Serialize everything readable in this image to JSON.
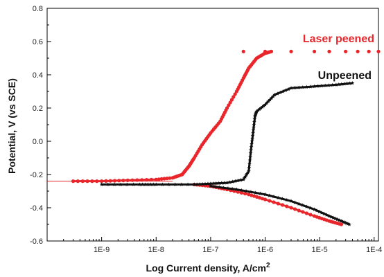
{
  "chart_data": {
    "type": "scatter",
    "xlabel": "Log Current density, A/cm",
    "xlabel_sup": "2",
    "ylabel": "Potential, V (vs SCE)",
    "xscale": "log",
    "xlim": [
      1e-10,
      0.00012
    ],
    "ylim": [
      -0.6,
      0.8
    ],
    "grid": false,
    "x_tick_values": [
      1e-09,
      1e-08,
      1e-07,
      1e-06,
      1e-05,
      0.0001
    ],
    "x_tick_labels": [
      "1E-9",
      "1E-8",
      "1E-7",
      "1E-6",
      "1E-5",
      "1E-4"
    ],
    "y_tick_values": [
      -0.6,
      -0.4,
      -0.2,
      0.0,
      0.2,
      0.4,
      0.6,
      0.8
    ],
    "y_tick_labels": [
      "-0.6",
      "-0.4",
      "-0.2",
      "0.0",
      "0.2",
      "0.4",
      "0.6",
      "0.8"
    ],
    "series": [
      {
        "name": "Laser peened",
        "color": "#e8262b",
        "marker": "circle",
        "anodic": [
          [
            3e-10,
            -0.24
          ],
          [
            1e-09,
            -0.24
          ],
          [
            3e-09,
            -0.235
          ],
          [
            1e-08,
            -0.23
          ],
          [
            2e-08,
            -0.22
          ],
          [
            3e-08,
            -0.2
          ],
          [
            4e-08,
            -0.15
          ],
          [
            5e-08,
            -0.1
          ],
          [
            7e-08,
            -0.02
          ],
          [
            1e-07,
            0.05
          ],
          [
            1.5e-07,
            0.12
          ],
          [
            2e-07,
            0.2
          ],
          [
            3e-07,
            0.3
          ],
          [
            4e-07,
            0.38
          ],
          [
            5e-07,
            0.44
          ],
          [
            7e-07,
            0.5
          ],
          [
            1e-06,
            0.53
          ],
          [
            1.3e-06,
            0.54
          ]
        ],
        "cathodic": [
          [
            5e-08,
            -0.26
          ],
          [
            1e-07,
            -0.27
          ],
          [
            2e-07,
            -0.29
          ],
          [
            5e-07,
            -0.32
          ],
          [
            1e-06,
            -0.35
          ],
          [
            3e-06,
            -0.4
          ],
          [
            8e-06,
            -0.45
          ],
          [
            1.5e-05,
            -0.48
          ],
          [
            2.5e-05,
            -0.5
          ]
        ],
        "plateau": [
          [
            4e-07,
            0.54
          ],
          [
            1e-06,
            0.54
          ],
          [
            3e-06,
            0.54
          ],
          [
            8e-06,
            0.54
          ],
          [
            1.5e-05,
            0.54
          ],
          [
            3e-05,
            0.54
          ],
          [
            5e-05,
            0.54
          ],
          [
            8e-05,
            0.54
          ],
          [
            0.00012,
            0.54
          ]
        ]
      },
      {
        "name": "Unpeened",
        "color": "#111111",
        "marker": "star",
        "anodic": [
          [
            1e-09,
            -0.26
          ],
          [
            5e-09,
            -0.26
          ],
          [
            1e-08,
            -0.26
          ],
          [
            5e-08,
            -0.26
          ],
          [
            1e-07,
            -0.255
          ],
          [
            2e-07,
            -0.25
          ],
          [
            4e-07,
            -0.23
          ],
          [
            5e-07,
            -0.18
          ],
          [
            5.5e-07,
            -0.05
          ],
          [
            6e-07,
            0.05
          ],
          [
            6.5e-07,
            0.15
          ],
          [
            7e-07,
            0.18
          ],
          [
            1e-06,
            0.22
          ],
          [
            1.5e-06,
            0.28
          ],
          [
            3e-06,
            0.32
          ],
          [
            8e-06,
            0.33
          ],
          [
            2e-05,
            0.34
          ],
          [
            4e-05,
            0.35
          ]
        ],
        "cathodic": [
          [
            1e-07,
            -0.27
          ],
          [
            3e-07,
            -0.29
          ],
          [
            1e-06,
            -0.32
          ],
          [
            3e-06,
            -0.36
          ],
          [
            8e-06,
            -0.41
          ],
          [
            1.5e-05,
            -0.45
          ],
          [
            2.5e-05,
            -0.48
          ],
          [
            3.5e-05,
            -0.5
          ]
        ]
      }
    ]
  }
}
